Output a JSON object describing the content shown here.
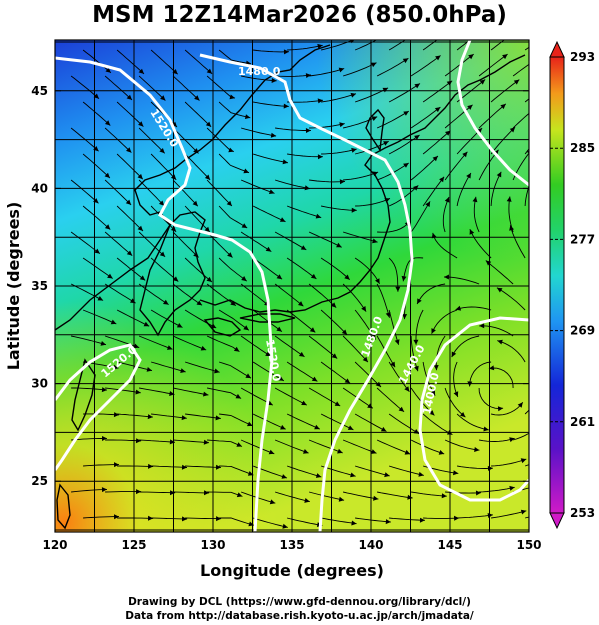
{
  "title": "MSM 12Z14Mar2026 (850.0hPa)",
  "x_axis": {
    "label": "Longitude (degrees)",
    "range": [
      120,
      150
    ],
    "ticks": [
      "120",
      "125",
      "130",
      "135",
      "140",
      "145",
      "150"
    ]
  },
  "y_axis": {
    "label": "Latitude  (degrees)",
    "range": [
      22.4,
      47.6
    ],
    "ticks": [
      "25",
      "30",
      "35",
      "40",
      "45"
    ]
  },
  "colorbar": {
    "range": [
      253,
      293
    ],
    "ticks": [
      "253",
      "261",
      "269",
      "277",
      "285",
      "293"
    ]
  },
  "contour_labels": [
    "1480.0",
    "1520.0",
    "1520.0",
    "1520.0",
    "1400.0",
    "1440.0",
    "1480.0"
  ],
  "credits": {
    "line1": "Drawing by DCL (https://www.gfd-dennou.org/library/dcl/)",
    "line2": "Data from http://database.rish.kyoto-u.ac.jp/arch/jmadata/"
  },
  "colors": {
    "cold": "#1a3fd6",
    "warm": "#ff2a10",
    "contour": "#ffffff",
    "coast": "#000000"
  }
}
